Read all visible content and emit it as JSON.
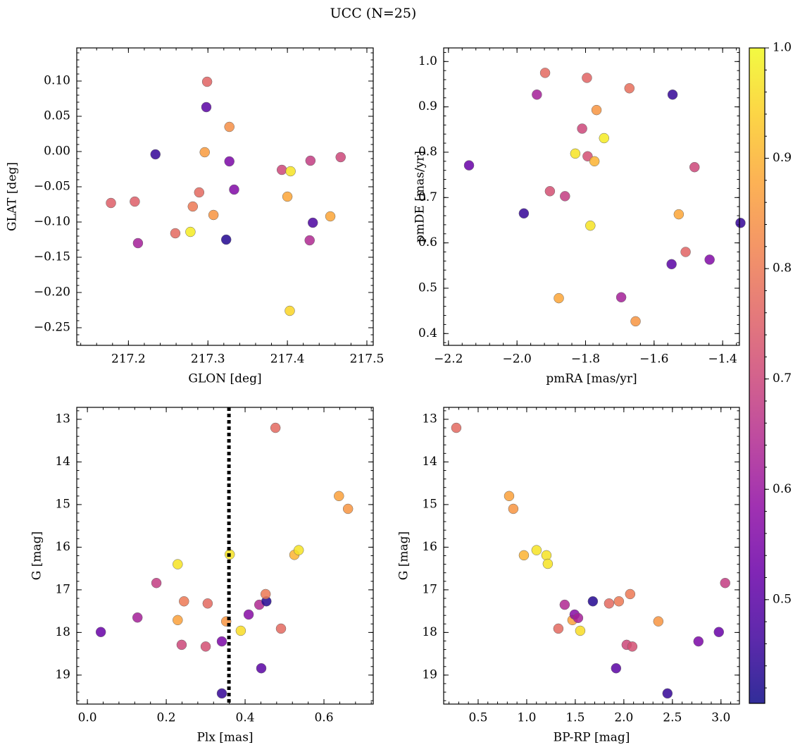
{
  "title": "UCC (N=25)",
  "colorbar": {
    "colormap": "plasma",
    "lim": [
      0.406,
      1.0
    ],
    "ticks": [
      0.5,
      0.6,
      0.7,
      0.8,
      0.9,
      {
        "value": 1.0,
        "label": "1.0"
      }
    ]
  },
  "chart_data": [
    {
      "type": "scatter",
      "xlabel": "GLON [deg]",
      "ylabel": "GLAT [deg]",
      "x": [
        217.178,
        217.208,
        217.212,
        217.234,
        217.259,
        217.278,
        217.281,
        217.289,
        217.296,
        217.299,
        217.298,
        217.307,
        217.323,
        217.327,
        217.327,
        217.333,
        217.393,
        217.404,
        217.4,
        217.403,
        217.429,
        217.428,
        217.432,
        217.454,
        217.467
      ],
      "values": [
        -0.073,
        -0.071,
        -0.13,
        -0.004,
        -0.116,
        -0.114,
        -0.078,
        -0.058,
        -0.001,
        0.099,
        0.063,
        -0.09,
        -0.125,
        0.035,
        -0.014,
        -0.054,
        -0.026,
        -0.028,
        -0.064,
        -0.226,
        -0.013,
        -0.126,
        -0.101,
        -0.092,
        -0.008
      ],
      "color_values": [
        0.75,
        0.75,
        0.62,
        0.45,
        0.77,
        0.98,
        0.8,
        0.77,
        0.86,
        0.76,
        0.5,
        0.85,
        0.43,
        0.84,
        0.55,
        0.56,
        0.7,
        0.97,
        0.88,
        0.95,
        0.68,
        0.64,
        0.48,
        0.88,
        0.7
      ],
      "xlim": [
        217.135,
        217.508
      ],
      "ylim": [
        -0.275,
        0.147
      ],
      "xticks": [
        217.2,
        217.3,
        217.4,
        217.5
      ],
      "yticks": [
        {
          "value": -0.25,
          "label": "−0.25"
        },
        {
          "value": -0.2,
          "label": "−0.20"
        },
        {
          "value": -0.15,
          "label": "−0.15"
        },
        {
          "value": -0.1,
          "label": "−0.10"
        },
        {
          "value": -0.05,
          "label": "−0.05"
        },
        {
          "value": 0,
          "label": "0.00"
        },
        0.05,
        {
          "value": 0.1,
          "label": "0.10"
        }
      ]
    },
    {
      "type": "scatter",
      "xlabel": "pmRA [mas/yr]",
      "ylabel": "pmDE [mas/yr]",
      "x": [
        -2.14,
        -1.98,
        -1.942,
        -1.918,
        -1.904,
        -1.878,
        -1.86,
        -1.83,
        -1.81,
        -1.796,
        -1.794,
        -1.786,
        -1.774,
        -1.768,
        -1.746,
        -1.696,
        -1.672,
        -1.654,
        -1.546,
        -1.549,
        -1.528,
        -1.508,
        -1.482,
        -1.438,
        -1.348
      ],
      "values": [
        0.771,
        0.665,
        0.927,
        0.975,
        0.714,
        0.478,
        0.703,
        0.797,
        0.852,
        0.964,
        0.791,
        0.638,
        0.78,
        0.893,
        0.831,
        0.48,
        0.941,
        0.427,
        0.927,
        0.553,
        0.663,
        0.58,
        0.767,
        0.563,
        0.644
      ],
      "color_values": [
        0.52,
        0.45,
        0.62,
        0.77,
        0.72,
        0.88,
        0.68,
        0.97,
        0.7,
        0.76,
        0.72,
        0.97,
        0.9,
        0.85,
        0.98,
        0.62,
        0.78,
        0.85,
        0.45,
        0.5,
        0.88,
        0.76,
        0.7,
        0.56,
        0.45
      ],
      "xlim": [
        -2.214,
        -1.351
      ],
      "ylim": [
        0.374,
        1.03
      ],
      "xticks": [
        {
          "value": -2.2,
          "label": "−2.2"
        },
        {
          "value": -2.0,
          "label": "−2.0"
        },
        {
          "value": -1.8,
          "label": "−1.8"
        },
        {
          "value": -1.6,
          "label": "−1.6"
        },
        {
          "value": -1.4,
          "label": "−1.4"
        }
      ],
      "yticks": [
        0.4,
        0.5,
        0.6,
        0.7,
        0.8,
        0.9,
        {
          "value": 1.0,
          "label": "1.0"
        }
      ]
    },
    {
      "type": "scatter",
      "xlabel": "Plx [mas]",
      "ylabel": "G [mag]",
      "x": [
        0.034,
        0.175,
        0.127,
        0.229,
        0.229,
        0.245,
        0.239,
        0.305,
        0.3,
        0.341,
        0.341,
        0.352,
        0.361,
        0.389,
        0.409,
        0.436,
        0.454,
        0.452,
        0.441,
        0.477,
        0.491,
        0.525,
        0.536,
        0.638,
        0.661
      ],
      "values": [
        17.99,
        16.84,
        17.65,
        16.4,
        17.71,
        17.27,
        18.29,
        17.32,
        18.33,
        18.21,
        19.43,
        17.74,
        16.17,
        17.96,
        17.58,
        17.35,
        17.27,
        17.1,
        18.84,
        13.2,
        17.91,
        16.18,
        16.07,
        14.8,
        15.1
      ],
      "color_values": [
        0.52,
        0.68,
        0.62,
        0.97,
        0.87,
        0.8,
        0.7,
        0.77,
        0.72,
        0.55,
        0.45,
        0.85,
        0.97,
        0.96,
        0.57,
        0.64,
        0.43,
        0.8,
        0.5,
        0.77,
        0.77,
        0.9,
        0.97,
        0.87,
        0.85
      ],
      "vline": 0.359,
      "xlim": [
        -0.027,
        0.725
      ],
      "ylim": [
        19.68,
        12.72
      ],
      "xticks": [
        {
          "value": 0,
          "label": "0.0"
        },
        0.2,
        0.4,
        0.6
      ],
      "yticks": [
        13,
        14,
        15,
        16,
        17,
        18,
        19
      ]
    },
    {
      "type": "scatter",
      "xlabel": "BP-RP [mag]",
      "ylabel": "G [mag]",
      "x": [
        0.275,
        0.819,
        0.862,
        0.971,
        1.101,
        1.203,
        1.217,
        1.326,
        1.391,
        1.471,
        1.493,
        1.529,
        1.551,
        1.681,
        1.848,
        1.92,
        1.949,
        2.029,
        2.065,
        2.087,
        2.355,
        2.449,
        2.768,
        2.978,
        3.043
      ],
      "values": [
        13.2,
        14.8,
        15.1,
        16.19,
        16.07,
        16.19,
        16.39,
        17.91,
        17.35,
        17.71,
        17.58,
        17.66,
        17.96,
        17.27,
        17.32,
        18.84,
        17.27,
        18.29,
        17.1,
        18.33,
        17.74,
        19.43,
        18.21,
        17.99,
        16.84
      ],
      "color_values": [
        0.77,
        0.87,
        0.85,
        0.9,
        0.97,
        0.97,
        0.97,
        0.77,
        0.64,
        0.87,
        0.57,
        0.62,
        0.96,
        0.43,
        0.77,
        0.5,
        0.8,
        0.7,
        0.8,
        0.72,
        0.85,
        0.45,
        0.55,
        0.52,
        0.68
      ],
      "xlim": [
        0.145,
        3.19
      ],
      "ylim": [
        19.68,
        12.72
      ],
      "xticks": [
        0.5,
        {
          "value": 1.0,
          "label": "1.0"
        },
        1.5,
        {
          "value": 2.0,
          "label": "2.0"
        },
        2.5,
        {
          "value": 3.0,
          "label": "3.0"
        }
      ],
      "yticks": [
        13,
        14,
        15,
        16,
        17,
        18,
        19
      ]
    }
  ]
}
